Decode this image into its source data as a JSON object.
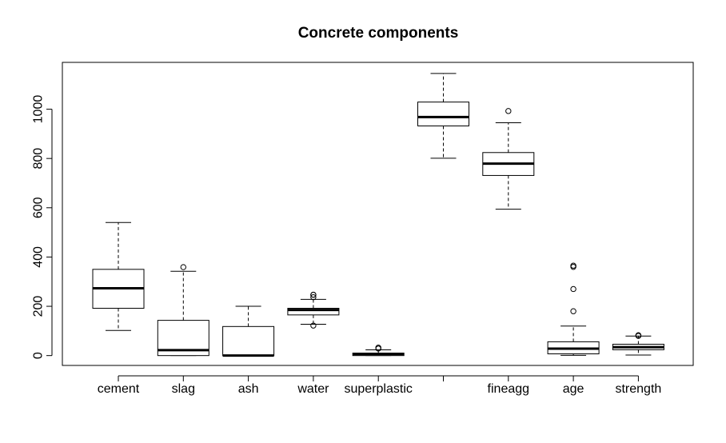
{
  "chart_data": {
    "type": "boxplot",
    "title": "Concrete components",
    "xlabel": "",
    "ylabel": "",
    "ylim": [
      -40,
      1190
    ],
    "yticks": [
      0,
      200,
      400,
      600,
      800,
      1000
    ],
    "ytick_labels": [
      "0",
      "200",
      "400",
      "600",
      "800",
      "1000"
    ],
    "grid": false,
    "categories": [
      "cement",
      "slag",
      "ash",
      "water",
      "superplastic",
      "",
      "fineagg",
      "age",
      "strength"
    ],
    "boxes": [
      {
        "name": "cement",
        "whisker_low": 102,
        "q1": 192,
        "median": 273,
        "q3": 350,
        "whisker_high": 540,
        "outliers": []
      },
      {
        "name": "slag",
        "whisker_low": 0,
        "q1": 0,
        "median": 22,
        "q3": 143,
        "whisker_high": 342,
        "outliers": [
          359
        ]
      },
      {
        "name": "ash",
        "whisker_low": 0,
        "q1": 0,
        "median": 0,
        "q3": 118,
        "whisker_high": 200,
        "outliers": []
      },
      {
        "name": "water",
        "whisker_low": 127,
        "q1": 165,
        "median": 185,
        "q3": 192,
        "whisker_high": 228,
        "outliers": [
          121.8,
          237,
          246.9,
          247
        ]
      },
      {
        "name": "superplastic",
        "whisker_low": 0,
        "q1": 0,
        "median": 6.4,
        "q3": 10.2,
        "whisker_high": 23.4,
        "outliers": [
          28.2,
          32.2
        ]
      },
      {
        "name": "",
        "whisker_low": 801,
        "q1": 932,
        "median": 968,
        "q3": 1029,
        "whisker_high": 1145,
        "outliers": []
      },
      {
        "name": "fineagg",
        "whisker_low": 594,
        "q1": 731,
        "median": 779,
        "q3": 824,
        "whisker_high": 945,
        "outliers": [
          992.6
        ]
      },
      {
        "name": "age",
        "whisker_low": 1,
        "q1": 7,
        "median": 28,
        "q3": 56,
        "whisker_high": 120,
        "outliers": [
          180,
          270,
          360,
          365
        ]
      },
      {
        "name": "strength",
        "whisker_low": 2.3,
        "q1": 23.7,
        "median": 34.4,
        "q3": 46.1,
        "whisker_high": 79.4,
        "outliers": [
          79.99,
          82.6
        ]
      }
    ]
  }
}
